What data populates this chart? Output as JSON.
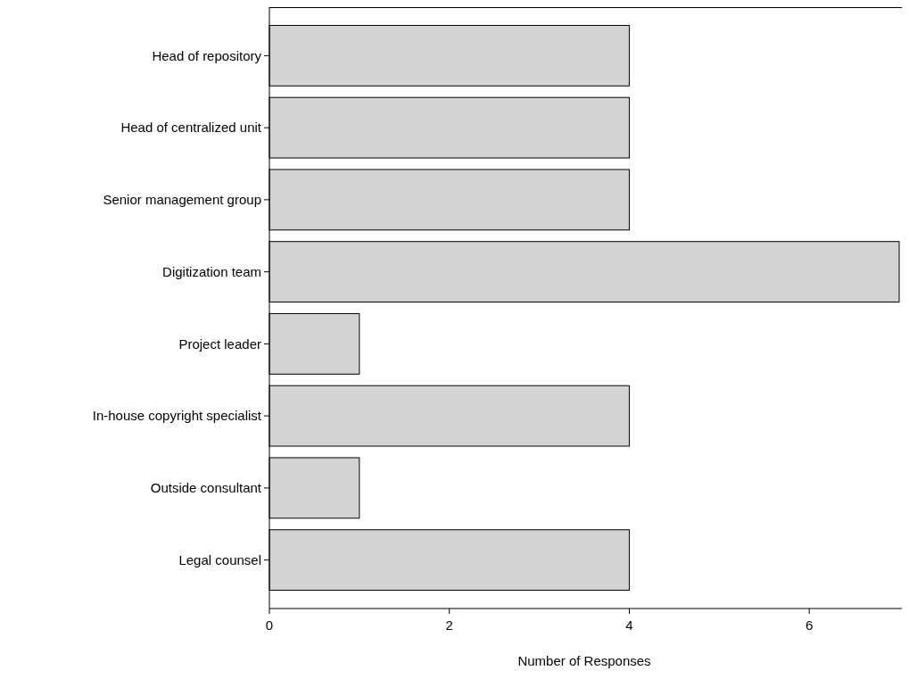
{
  "chart_data": {
    "type": "bar",
    "orientation": "horizontal",
    "xlabel": "Number of Responses",
    "categories": [
      "Head of repository",
      "Head of centralized unit",
      "Senior management group",
      "Digitization team",
      "Project leader",
      "In-house copyright specialist",
      "Outside consultant",
      "Legal counsel"
    ],
    "values": [
      4,
      4,
      4,
      7,
      1,
      4,
      1,
      4
    ],
    "color": "#d3d3d3",
    "xlim": [
      0,
      7
    ],
    "xticks": [
      0,
      2,
      4,
      6
    ],
    "grid": false
  }
}
